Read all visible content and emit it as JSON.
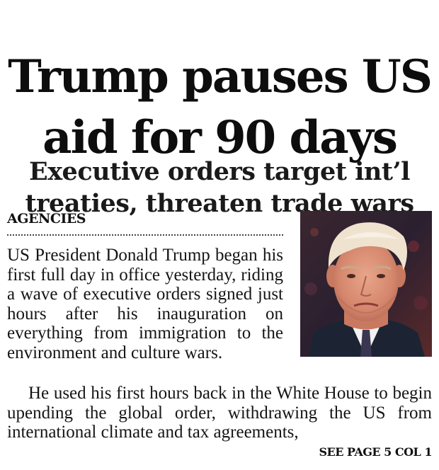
{
  "headline": {
    "line1": "Trump pauses US",
    "line2": "aid for 90 days"
  },
  "subheadline": {
    "line1": "Executive orders target int’l",
    "line2": "treaties, threaten trade wars"
  },
  "byline": "AGENCIES",
  "body": {
    "paragraph1": "US President Donald Trump began his first full day in office yesterday, riding a wave of executive orders signed just hours after his inauguration on everything from immigration to the environment and culture wars.",
    "paragraph2": "He used his first hours back in the White House to begin upending the global order, withdrawing the US from international climate and tax agreements,"
  },
  "jump_line": "SEE PAGE 5 COL 1",
  "colors": {
    "text": "#111111",
    "background": "#ffffff",
    "photo_background": "#2a1f28",
    "suit": "#1c2433",
    "skin": "#d9907a",
    "hair": "#efe3cf"
  }
}
